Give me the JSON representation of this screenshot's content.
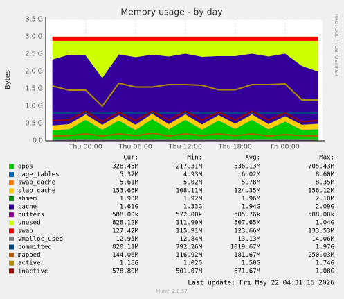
{
  "chart_data": {
    "type": "stacked-area",
    "title": "Memory usage - by day",
    "y_label": "Bytes",
    "side_text": "RRDTOOL / TOBI OETIKER",
    "x": [
      -4,
      -2,
      0,
      2,
      4,
      6,
      8,
      10,
      12,
      14,
      16,
      18,
      20,
      22,
      24,
      26,
      28
    ],
    "xlim": [
      -4.8,
      28.5
    ],
    "xticks": [
      {
        "value": 0,
        "label": "Thu 00:00"
      },
      {
        "value": 6,
        "label": "Thu 06:00"
      },
      {
        "value": 12,
        "label": "Thu 12:00"
      },
      {
        "value": 18,
        "label": "Thu 18:00"
      },
      {
        "value": 24,
        "label": "Fri 00:00"
      }
    ],
    "ylim": [
      0,
      3.5
    ],
    "yticks": [
      {
        "value": 0,
        "label": "0.0"
      },
      {
        "value": 0.5,
        "label": "0.5 G"
      },
      {
        "value": 1,
        "label": "1.0 G"
      },
      {
        "value": 1.5,
        "label": "1.5 G"
      },
      {
        "value": 2,
        "label": "2.0 G"
      },
      {
        "value": 2.5,
        "label": "2.5 G"
      },
      {
        "value": 3,
        "label": "3.0 G"
      },
      {
        "value": 3.5,
        "label": "3.5 G"
      }
    ],
    "grid": true,
    "legend_headers": [
      "Cur:",
      "Min:",
      "Avg:",
      "Max:"
    ],
    "series": [
      {
        "name": "apps",
        "color": "#00cc00",
        "stack": true,
        "cur": "328.45M",
        "min": "217.31M",
        "avg": "336.13M",
        "max": "705.43M",
        "values": [
          0.3,
          0.33,
          0.6,
          0.32,
          0.58,
          0.31,
          0.62,
          0.33,
          0.6,
          0.32,
          0.58,
          0.34,
          0.6,
          0.33,
          0.55,
          0.31,
          0.33
        ]
      },
      {
        "name": "page_tables",
        "color": "#0066b3",
        "stack": true,
        "cur": "5.37M",
        "min": "4.93M",
        "avg": "6.02M",
        "max": "8.60M",
        "values": [
          0.005,
          0.005,
          0.005,
          0.005,
          0.005,
          0.005,
          0.005,
          0.005,
          0.005,
          0.005,
          0.005,
          0.005,
          0.005,
          0.005,
          0.005,
          0.005,
          0.005
        ]
      },
      {
        "name": "swap_cache",
        "color": "#ff8000",
        "stack": true,
        "cur": "5.61M",
        "min": "5.02M",
        "avg": "5.78M",
        "max": "8.35M",
        "values": [
          0.006,
          0.006,
          0.006,
          0.006,
          0.006,
          0.006,
          0.006,
          0.006,
          0.006,
          0.006,
          0.006,
          0.006,
          0.006,
          0.006,
          0.006,
          0.006,
          0.006
        ]
      },
      {
        "name": "slab_cache",
        "color": "#ffcc00",
        "stack": true,
        "cur": "153.66M",
        "min": "108.11M",
        "avg": "124.35M",
        "max": "156.12M",
        "values": [
          0.13,
          0.14,
          0.15,
          0.13,
          0.15,
          0.14,
          0.15,
          0.14,
          0.15,
          0.14,
          0.15,
          0.14,
          0.15,
          0.14,
          0.15,
          0.14,
          0.15
        ]
      },
      {
        "name": "shmem",
        "color": "#008f00",
        "stack": true,
        "cur": "1.93M",
        "min": "1.92M",
        "avg": "1.96M",
        "max": "2.10M",
        "values": [
          0.002,
          0.002,
          0.002,
          0.002,
          0.002,
          0.002,
          0.002,
          0.002,
          0.002,
          0.002,
          0.002,
          0.002,
          0.002,
          0.002,
          0.002,
          0.002,
          0.002
        ]
      },
      {
        "name": "cache",
        "color": "#330099",
        "stack": true,
        "cur": "1.61G",
        "min": "1.33G",
        "avg": "1.94G",
        "max": "2.09G",
        "values": [
          1.9,
          2.0,
          1.7,
          1.35,
          1.75,
          1.95,
          1.7,
          1.95,
          1.75,
          1.95,
          1.7,
          1.95,
          1.75,
          1.95,
          1.8,
          1.7,
          1.5
        ]
      },
      {
        "name": "buffers",
        "color": "#990099",
        "stack": true,
        "cur": "588.00k",
        "min": "572.00k",
        "avg": "585.76k",
        "max": "588.00k",
        "values": [
          0.0006,
          0.0006,
          0.0006,
          0.0006,
          0.0006,
          0.0006,
          0.0006,
          0.0006,
          0.0006,
          0.0006,
          0.0006,
          0.0006,
          0.0006,
          0.0006,
          0.0006,
          0.0006,
          0.0006
        ]
      },
      {
        "name": "unused",
        "color": "#ccff00",
        "stack": true,
        "cur": "828.12M",
        "min": "111.90M",
        "avg": "507.65M",
        "max": "1.04G",
        "values": [
          0.54,
          0.4,
          0.42,
          1.07,
          0.39,
          0.47,
          0.4,
          0.45,
          0.37,
          0.46,
          0.44,
          0.44,
          0.37,
          0.45,
          0.37,
          0.72,
          0.89
        ]
      },
      {
        "name": "swap",
        "color": "#ff0000",
        "stack": true,
        "cur": "127.42M",
        "min": "115.91M",
        "avg": "123.66M",
        "max": "133.53M",
        "values": [
          0.12,
          0.12,
          0.12,
          0.12,
          0.12,
          0.12,
          0.12,
          0.12,
          0.12,
          0.12,
          0.12,
          0.12,
          0.12,
          0.12,
          0.12,
          0.12,
          0.12
        ]
      },
      {
        "name": "vmalloc_used",
        "color": "#808080",
        "stack": false,
        "cur": "12.95M",
        "min": "12.84M",
        "avg": "13.13M",
        "max": "14.06M",
        "values": [
          0.013,
          0.013,
          0.013,
          0.013,
          0.013,
          0.013,
          0.013,
          0.013,
          0.013,
          0.013,
          0.013,
          0.013,
          0.013,
          0.013,
          0.013,
          0.013,
          0.013
        ]
      },
      {
        "name": "committed",
        "color": "#00487d",
        "stack": false,
        "cur": "820.11M",
        "min": "792.26M",
        "avg": "1019.67M",
        "max": "1.97G",
        "values": [
          0.8,
          0.8,
          0.8,
          0.79,
          0.8,
          0.8,
          0.8,
          0.8,
          0.8,
          0.8,
          0.8,
          0.8,
          0.8,
          0.8,
          0.8,
          0.8,
          0.8
        ]
      },
      {
        "name": "mapped",
        "color": "#b35a00",
        "stack": false,
        "cur": "144.06M",
        "min": "116.92M",
        "avg": "181.67M",
        "max": "250.03M",
        "values": [
          0.14,
          0.15,
          0.2,
          0.14,
          0.2,
          0.15,
          0.22,
          0.14,
          0.2,
          0.15,
          0.2,
          0.15,
          0.2,
          0.14,
          0.18,
          0.15,
          0.14
        ]
      },
      {
        "name": "active",
        "color": "#b38f00",
        "stack": false,
        "cur": "1.18G",
        "min": "1.02G",
        "avg": "1.50G",
        "max": "1.74G",
        "values": [
          1.58,
          1.46,
          1.46,
          1.0,
          1.66,
          1.55,
          1.55,
          1.62,
          1.62,
          1.6,
          1.47,
          1.47,
          1.62,
          1.62,
          1.64,
          1.18,
          1.18
        ]
      },
      {
        "name": "inactive",
        "color": "#990000",
        "stack": false,
        "cur": "578.80M",
        "min": "501.07M",
        "avg": "671.67M",
        "max": "1.08G",
        "values": [
          0.58,
          0.6,
          0.85,
          0.55,
          0.82,
          0.58,
          0.85,
          0.6,
          0.85,
          0.6,
          0.82,
          0.6,
          0.85,
          0.6,
          0.8,
          0.55,
          0.58
        ]
      }
    ],
    "last_update": "Last update: Fri May 22 04:31:15 2026",
    "footer": "Munin 2.0.57"
  }
}
